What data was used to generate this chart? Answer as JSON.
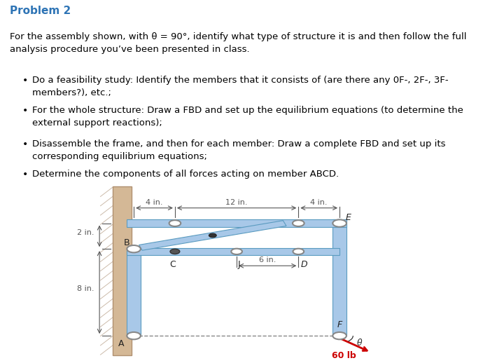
{
  "title": "Problem 2",
  "title_color": "#2E74B5",
  "title_fontsize": 11,
  "body_text": "For the assembly shown, with θ = 90°, identify what type of structure it is and then follow the full\nanalysis procedure you’ve been presented in class.",
  "bullets": [
    "Do a feasibility study: Identify the members that it consists of (are there any 0F-, 2F-, 3F-\nmembers?), etc.;",
    "For the whole structure: Draw a FBD and set up the equilibrium equations (to determine the\nexternal support reactions);",
    "Disassemble the frame, and then for each member: Draw a complete FBD and set up its\ncorresponding equilibrium equations;",
    "Determine the components of all forces acting on member ABCD."
  ],
  "fig_width": 7.0,
  "fig_height": 5.18,
  "dpi": 100,
  "background": "#ffffff",
  "diagram": {
    "wall_color": "#d4b896",
    "frame_color": "#a8c8e8",
    "frame_edge_color": "#5a9bc0",
    "pin_color": "#888888",
    "force_color": "#cc0000",
    "dim_color": "#555555",
    "label_color": "#222222"
  }
}
